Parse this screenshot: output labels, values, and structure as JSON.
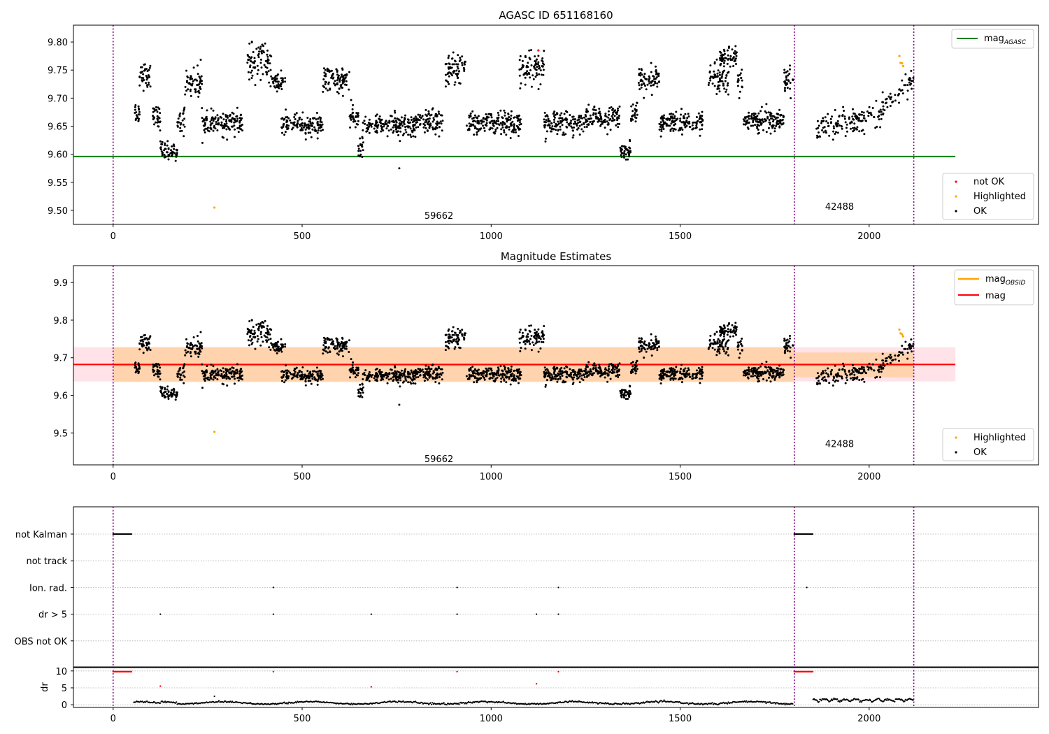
{
  "figure": {
    "background": "#ffffff"
  },
  "chart_data": [
    {
      "type": "scatter",
      "title": "AGASC ID 651168160",
      "xlim": [
        -105,
        2448
      ],
      "ylim": [
        9.475,
        9.83
      ],
      "xticks": [
        0,
        500,
        1000,
        1500,
        2000
      ],
      "xtick_labels": [
        "0",
        "500",
        "1000",
        "1500",
        "2000"
      ],
      "yticks": [
        9.5,
        9.55,
        9.6,
        9.65,
        9.7,
        9.75,
        9.8
      ],
      "ytick_labels": [
        "9.50",
        "9.55",
        "9.60",
        "9.65",
        "9.70",
        "9.75",
        "9.80"
      ],
      "obs_boundaries": [
        0,
        1802,
        2118
      ],
      "obsid_labels": [
        {
          "x": 900,
          "y": 9.49,
          "text": "59662"
        },
        {
          "x": 1960,
          "y": 9.506,
          "text": "42488"
        }
      ],
      "lines": [
        {
          "name": "mag_AGASC",
          "value": 9.596,
          "x_range": [
            -105,
            2228
          ],
          "color": "#008000"
        }
      ],
      "series": [
        {
          "name": "OK",
          "color": "#000000"
        },
        {
          "name": "Highlighted",
          "color": "#ffa500"
        },
        {
          "name": "not OK",
          "color": "#ff0000"
        }
      ],
      "legend_upper": {
        "placement": "top-right",
        "entries": [
          {
            "label": "mag",
            "sub": "AGASC",
            "color": "#008000",
            "kind": "line"
          }
        ]
      },
      "legend_lower": {
        "placement": "bottom-right",
        "entries": [
          {
            "label": "not OK",
            "color": "#ff0000",
            "kind": "dot"
          },
          {
            "label": "Highlighted",
            "color": "#ffa500",
            "kind": "dot"
          },
          {
            "label": "OK",
            "color": "#000000",
            "kind": "dot"
          }
        ]
      },
      "highlighted_points": [
        [
          268,
          9.505
        ],
        [
          2080,
          9.775
        ],
        [
          2083,
          9.763
        ],
        [
          2087,
          9.762
        ],
        [
          2090,
          9.757
        ]
      ],
      "not_ok_points": [
        [
          1125,
          9.785
        ]
      ],
      "outlier_points": [
        [
          757,
          9.575
        ]
      ]
    },
    {
      "type": "scatter",
      "title": "Magnitude Estimates",
      "xlim": [
        -105,
        2448
      ],
      "ylim": [
        9.415,
        9.945
      ],
      "xticks": [
        0,
        500,
        1000,
        1500,
        2000
      ],
      "xtick_labels": [
        "0",
        "500",
        "1000",
        "1500",
        "2000"
      ],
      "yticks": [
        9.5,
        9.6,
        9.7,
        9.8,
        9.9
      ],
      "ytick_labels": [
        "9.5",
        "9.6",
        "9.7",
        "9.8",
        "9.9"
      ],
      "obs_boundaries": [
        0,
        1802,
        2118
      ],
      "obsid_labels": [
        {
          "x": 900,
          "y": 9.43,
          "text": "59662"
        },
        {
          "x": 1960,
          "y": 9.47,
          "text": "42488"
        }
      ],
      "lines": [
        {
          "name": "mag",
          "value": 9.682,
          "x_range": [
            -105,
            2228
          ],
          "color": "#ff0000"
        }
      ],
      "bands": [
        {
          "x_range": [
            -105,
            2228
          ],
          "y_range": [
            9.637,
            9.728
          ],
          "color": "#ffc0cb",
          "opacity": 0.45
        },
        {
          "x_range": [
            0,
            1802
          ],
          "y_range": [
            9.635,
            9.728
          ],
          "color": "#ffa500",
          "opacity": 0.25
        },
        {
          "x_range": [
            1802,
            2118
          ],
          "y_range": [
            9.648,
            9.714
          ],
          "color": "#ffa500",
          "opacity": 0.25
        }
      ],
      "obsid_mag_segments": [
        {
          "x_range": [
            0,
            1802
          ],
          "value": 9.681
        },
        {
          "x_range": [
            1802,
            2118
          ],
          "value": 9.681
        }
      ],
      "series": [
        {
          "name": "OK",
          "color": "#000000"
        },
        {
          "name": "Highlighted",
          "color": "#ffa500"
        }
      ],
      "legend_upper": {
        "placement": "top-right",
        "entries": [
          {
            "label": "mag",
            "sub": "OBSID",
            "color": "#ffa500",
            "kind": "line"
          },
          {
            "label": "mag",
            "sub": "",
            "color": "#ff0000",
            "kind": "line"
          }
        ]
      },
      "legend_lower": {
        "placement": "bottom-right",
        "entries": [
          {
            "label": "Highlighted",
            "color": "#ffa500",
            "kind": "dot"
          },
          {
            "label": "OK",
            "color": "#000000",
            "kind": "dot"
          }
        ]
      },
      "highlighted_points": [
        [
          268,
          9.503
        ],
        [
          2080,
          9.775
        ],
        [
          2083,
          9.765
        ],
        [
          2087,
          9.762
        ],
        [
          2090,
          9.757
        ]
      ],
      "outlier_points": [
        [
          757,
          9.575
        ]
      ]
    },
    {
      "type": "scatter",
      "title": "",
      "xlim": [
        -105,
        2448
      ],
      "obs_boundaries": [
        0,
        1802,
        2118
      ],
      "flag_labels": [
        "not Kalman",
        "not track",
        "Ion. rad.",
        "dr > 5",
        "OBS not OK"
      ],
      "flags": {
        "not Kalman": {
          "ranges": [
            [
              0,
              50
            ],
            [
              1802,
              1852
            ]
          ]
        },
        "not track": {
          "ranges": []
        },
        "Ion. rad.": {
          "points": [
            424,
            910,
            1178,
            1835
          ]
        },
        "dr > 5": {
          "points": [
            125,
            424,
            683,
            910,
            1120,
            1178
          ]
        },
        "OBS not OK": {
          "points": []
        }
      }
    },
    {
      "type": "scatter",
      "title": "",
      "xlim": [
        -105,
        2448
      ],
      "ylim": [
        -0.8,
        11.2
      ],
      "ylabel": "dr",
      "xticks": [
        0,
        500,
        1000,
        1500,
        2000
      ],
      "xtick_labels": [
        "0",
        "500",
        "1000",
        "1500",
        "2000"
      ],
      "yticks": [
        0,
        5,
        10
      ],
      "ytick_labels": [
        "0",
        "5",
        "10"
      ],
      "obs_boundaries": [
        0,
        1802,
        2118
      ],
      "clip_ranges": [
        [
          0,
          50
        ],
        [
          1802,
          1852
        ]
      ],
      "clip_points": [
        424,
        910,
        1178
      ],
      "red_points": [
        [
          125,
          5.5
        ],
        [
          683,
          5.3
        ],
        [
          1120,
          6.2
        ]
      ],
      "outlier_points": [
        [
          268,
          2.5
        ]
      ]
    }
  ]
}
